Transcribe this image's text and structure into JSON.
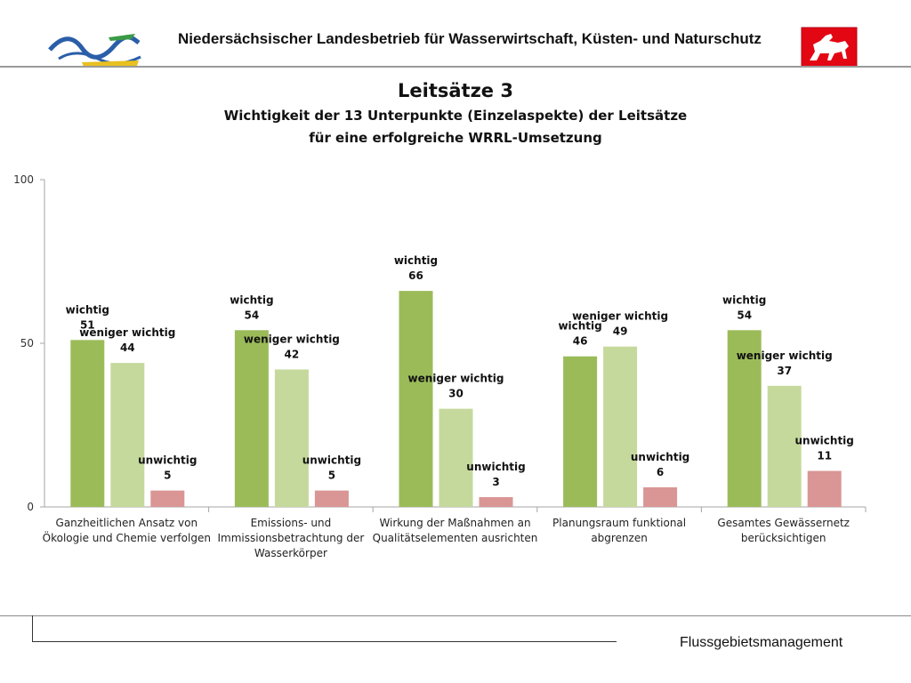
{
  "header": {
    "organization": "Niedersächsischer Landesbetrieb für Wasserwirtschaft, Küsten- und Naturschutz"
  },
  "titles": {
    "main": "Leitsätze 3",
    "subtitle_line1": "Wichtigkeit der 13 Unterpunkte (Einzelaspekte) der Leitsätze",
    "subtitle_line2": "für eine erfolgreiche WRRL-Umsetzung"
  },
  "footer": {
    "label": "Flussgebietsmanagement"
  },
  "colors": {
    "wichtig": "#9bbb59",
    "weniger_wichtig": "#c6d99c",
    "unwichtig": "#d99694"
  },
  "chart_data": {
    "type": "bar",
    "title": "Wichtigkeit der 13 Unterpunkte (Einzelaspekte) der Leitsätze für eine erfolgreiche WRRL-Umsetzung",
    "xlabel": "",
    "ylabel": "",
    "ylim": [
      0,
      100
    ],
    "yticks": [
      "0",
      "50",
      "100"
    ],
    "grid": false,
    "categories": [
      [
        "Ganzheitlichen Ansatz von",
        "Ökologie und Chemie verfolgen"
      ],
      [
        "Emissions- und",
        "Immissionsbetrachtung der",
        "Wasserkörper"
      ],
      [
        "Wirkung der Maßnahmen an",
        "Qualitätselementen ausrichten"
      ],
      [
        "Planungsraum funktional",
        "abgrenzen"
      ],
      [
        "Gesamtes Gewässernetz",
        "berücksichtigen"
      ]
    ],
    "series": [
      {
        "name": "wichtig",
        "values": [
          51,
          54,
          66,
          46,
          54
        ]
      },
      {
        "name": "weniger wichtig",
        "values": [
          44,
          42,
          30,
          49,
          37
        ]
      },
      {
        "name": "unwichtig",
        "values": [
          5,
          5,
          3,
          6,
          11
        ]
      }
    ]
  }
}
